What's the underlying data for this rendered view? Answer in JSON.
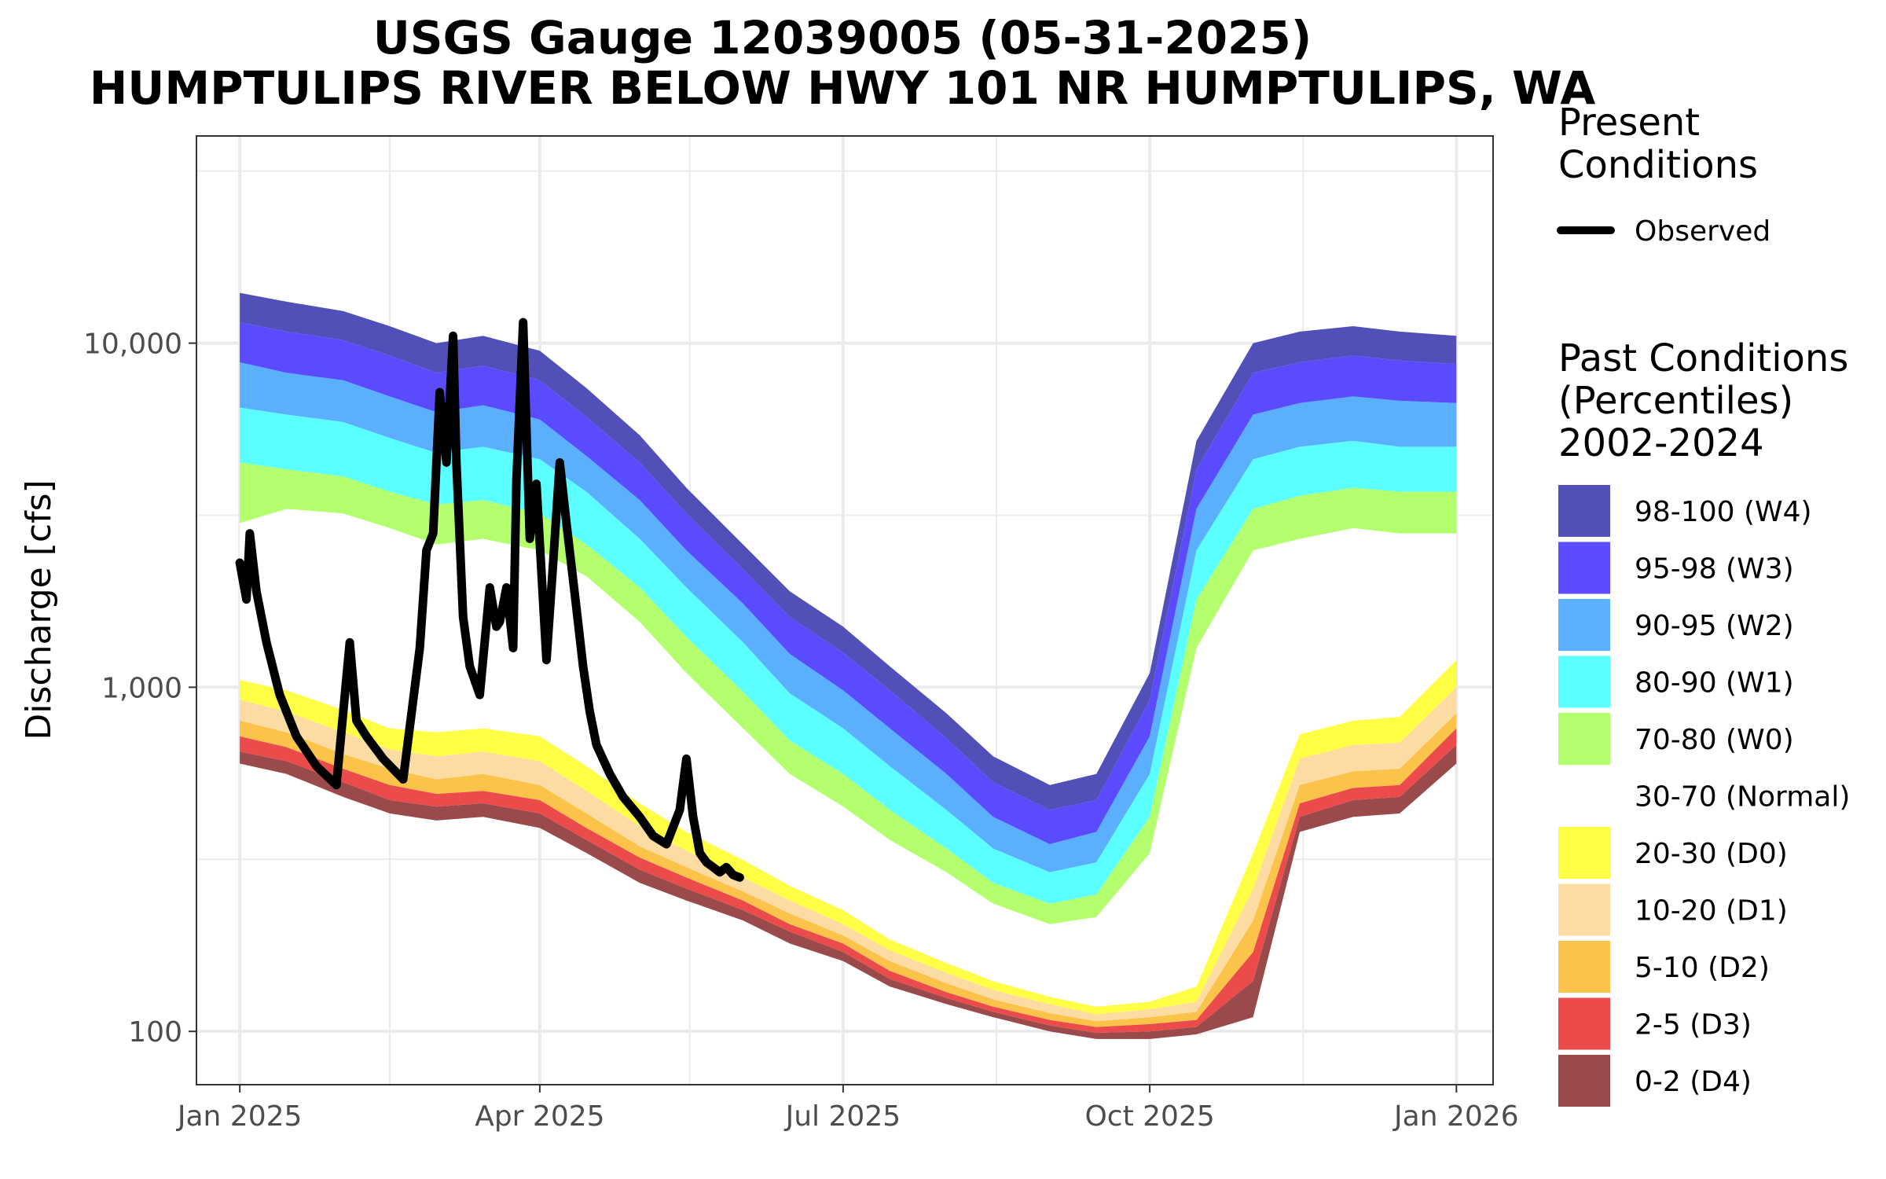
{
  "chart_data": {
    "type": "area",
    "title_line1": "USGS Gauge 12039005 (05-31-2025)",
    "title_line2": "HUMPTULIPS RIVER BELOW HWY 101 NR HUMPTULIPS, WA",
    "ylabel": "Discharge [cfs]",
    "xlabel": "",
    "y_scale": "log",
    "ylim": [
      70,
      40000
    ],
    "xlim": [
      "2024-12-19",
      "2026-01-12"
    ],
    "x_ticks": [
      {
        "date": "2025-01-01",
        "label": "Jan 2025"
      },
      {
        "date": "2025-04-01",
        "label": "Apr 2025"
      },
      {
        "date": "2025-07-01",
        "label": "Jul 2025"
      },
      {
        "date": "2025-10-01",
        "label": "Oct 2025"
      },
      {
        "date": "2026-01-01",
        "label": "Jan 2026"
      }
    ],
    "y_ticks": [
      {
        "value": 100,
        "label": "100"
      },
      {
        "value": 1000,
        "label": "1,000"
      },
      {
        "value": 10000,
        "label": "10,000"
      }
    ],
    "grid": true,
    "legend_position": "right",
    "legend_present": {
      "title_line1": "Present",
      "title_line2": "Conditions",
      "label": "Observed",
      "color": "#000000"
    },
    "legend_past": {
      "title_line1": "Past Conditions",
      "title_line2": "(Percentiles)",
      "title_line3": "2002-2024",
      "items": [
        {
          "label": "98-100 (W4)",
          "color": "#5050b8"
        },
        {
          "label": "95-98 (W3)",
          "color": "#5a4bff"
        },
        {
          "label": "90-95 (W2)",
          "color": "#5ab0ff"
        },
        {
          "label": "80-90 (W1)",
          "color": "#5cffff"
        },
        {
          "label": "70-80 (W0)",
          "color": "#b4ff6e"
        },
        {
          "label": "30-70 (Normal)",
          "color": "#ffffff"
        },
        {
          "label": "20-30 (D0)",
          "color": "#ffff46"
        },
        {
          "label": "10-20 (D1)",
          "color": "#fcdca2"
        },
        {
          "label": "5-10 (D2)",
          "color": "#fcc34a"
        },
        {
          "label": "2-5 (D3)",
          "color": "#eb4b4b"
        },
        {
          "label": "0-2 (D4)",
          "color": "#9a4a4a"
        }
      ]
    },
    "percentile_dates": [
      "2025-01-01",
      "2025-01-15",
      "2025-02-01",
      "2025-02-15",
      "2025-03-01",
      "2025-03-15",
      "2025-04-01",
      "2025-04-15",
      "2025-05-01",
      "2025-05-15",
      "2025-06-01",
      "2025-06-15",
      "2025-07-01",
      "2025-07-15",
      "2025-08-01",
      "2025-08-15",
      "2025-09-01",
      "2025-09-15",
      "2025-10-01",
      "2025-10-15",
      "2025-11-01",
      "2025-11-15",
      "2025-12-01",
      "2025-12-15",
      "2026-01-01"
    ],
    "percentile_series": [
      {
        "name": "p0",
        "values": [
          600,
          560,
          480,
          430,
          410,
          420,
          390,
          330,
          270,
          240,
          210,
          180,
          160,
          135,
          120,
          110,
          100,
          95,
          95,
          98,
          110,
          380,
          420,
          430,
          600
        ]
      },
      {
        "name": "p2",
        "values": [
          650,
          610,
          530,
          470,
          450,
          460,
          430,
          360,
          295,
          260,
          225,
          195,
          170,
          142,
          125,
          114,
          104,
          99,
          100,
          103,
          140,
          420,
          470,
          480,
          680
        ]
      },
      {
        "name": "p5",
        "values": [
          720,
          670,
          580,
          520,
          490,
          500,
          470,
          390,
          320,
          280,
          240,
          205,
          180,
          150,
          130,
          118,
          108,
          103,
          105,
          108,
          170,
          460,
          510,
          520,
          760
        ]
      },
      {
        "name": "p10",
        "values": [
          800,
          740,
          640,
          580,
          540,
          560,
          520,
          430,
          345,
          300,
          255,
          220,
          190,
          160,
          138,
          124,
          113,
          107,
          110,
          114,
          210,
          520,
          570,
          580,
          840
        ]
      },
      {
        "name": "p20",
        "values": [
          920,
          850,
          740,
          660,
          630,
          650,
          610,
          500,
          395,
          335,
          280,
          240,
          205,
          172,
          148,
          132,
          120,
          112,
          116,
          122,
          260,
          620,
          680,
          690,
          1000
        ]
      },
      {
        "name": "p30",
        "values": [
          1050,
          980,
          860,
          760,
          740,
          760,
          720,
          590,
          460,
          380,
          315,
          265,
          225,
          185,
          158,
          140,
          126,
          118,
          122,
          135,
          330,
          730,
          800,
          820,
          1200
        ]
      },
      {
        "name": "p70",
        "values": [
          3000,
          3300,
          3200,
          2900,
          2600,
          2700,
          2500,
          2100,
          1550,
          1100,
          760,
          560,
          450,
          360,
          290,
          235,
          205,
          215,
          330,
          1300,
          2500,
          2700,
          2900,
          2800,
          2800
        ]
      },
      {
        "name": "p80",
        "values": [
          4500,
          4300,
          4100,
          3700,
          3400,
          3500,
          3200,
          2600,
          1950,
          1400,
          970,
          700,
          560,
          440,
          340,
          270,
          235,
          250,
          420,
          1800,
          3300,
          3600,
          3800,
          3700,
          3700
        ]
      },
      {
        "name": "p90",
        "values": [
          6500,
          6200,
          5900,
          5300,
          4800,
          5000,
          4600,
          3700,
          2700,
          1950,
          1350,
          960,
          760,
          590,
          440,
          340,
          290,
          310,
          560,
          2500,
          4600,
          5000,
          5200,
          5000,
          5000
        ]
      },
      {
        "name": "p95",
        "values": [
          8800,
          8200,
          7800,
          7000,
          6300,
          6600,
          6000,
          4700,
          3500,
          2500,
          1750,
          1250,
          980,
          760,
          560,
          420,
          350,
          380,
          720,
          3300,
          6200,
          6700,
          7000,
          6800,
          6700
        ]
      },
      {
        "name": "p98",
        "values": [
          11500,
          10800,
          10200,
          9200,
          8200,
          8600,
          7800,
          6100,
          4500,
          3200,
          2200,
          1600,
          1260,
          980,
          710,
          530,
          440,
          470,
          920,
          4300,
          8200,
          8800,
          9200,
          8900,
          8700
        ]
      },
      {
        "name": "p100",
        "values": [
          14000,
          13200,
          12400,
          11200,
          10000,
          10500,
          9500,
          7400,
          5400,
          3800,
          2600,
          1900,
          1500,
          1150,
          840,
          630,
          520,
          560,
          1100,
          5200,
          10000,
          10800,
          11200,
          10800,
          10500
        ]
      }
    ],
    "observed": {
      "name": "Observed",
      "x": [
        "2025-01-01",
        "2025-01-03",
        "2025-01-04",
        "2025-01-06",
        "2025-01-09",
        "2025-01-13",
        "2025-01-18",
        "2025-01-24",
        "2025-01-30",
        "2025-02-03",
        "2025-02-05",
        "2025-02-08",
        "2025-02-13",
        "2025-02-19",
        "2025-02-24",
        "2025-02-26",
        "2025-02-28",
        "2025-03-02",
        "2025-03-04",
        "2025-03-06",
        "2025-03-07",
        "2025-03-09",
        "2025-03-11",
        "2025-03-14",
        "2025-03-17",
        "2025-03-19",
        "2025-03-20",
        "2025-03-22",
        "2025-03-24",
        "2025-03-25",
        "2025-03-27",
        "2025-03-29",
        "2025-03-31",
        "2025-04-03",
        "2025-04-05",
        "2025-04-07",
        "2025-04-09",
        "2025-04-12",
        "2025-04-14",
        "2025-04-16",
        "2025-04-18",
        "2025-04-22",
        "2025-04-26",
        "2025-05-01",
        "2025-05-05",
        "2025-05-09",
        "2025-05-13",
        "2025-05-15",
        "2025-05-17",
        "2025-05-19",
        "2025-05-21",
        "2025-05-23",
        "2025-05-25",
        "2025-05-27",
        "2025-05-29",
        "2025-05-31"
      ],
      "y": [
        2300,
        1800,
        2800,
        1900,
        1350,
        950,
        720,
        590,
        520,
        1350,
        800,
        720,
        620,
        540,
        1300,
        2500,
        2800,
        7200,
        4500,
        10500,
        4500,
        1600,
        1150,
        950,
        1950,
        1500,
        1550,
        1950,
        1300,
        4000,
        11500,
        2700,
        3900,
        1200,
        2300,
        4500,
        3000,
        1700,
        1150,
        850,
        680,
        560,
        480,
        420,
        370,
        350,
        440,
        620,
        420,
        330,
        310,
        300,
        290,
        300,
        285,
        280
      ]
    }
  }
}
